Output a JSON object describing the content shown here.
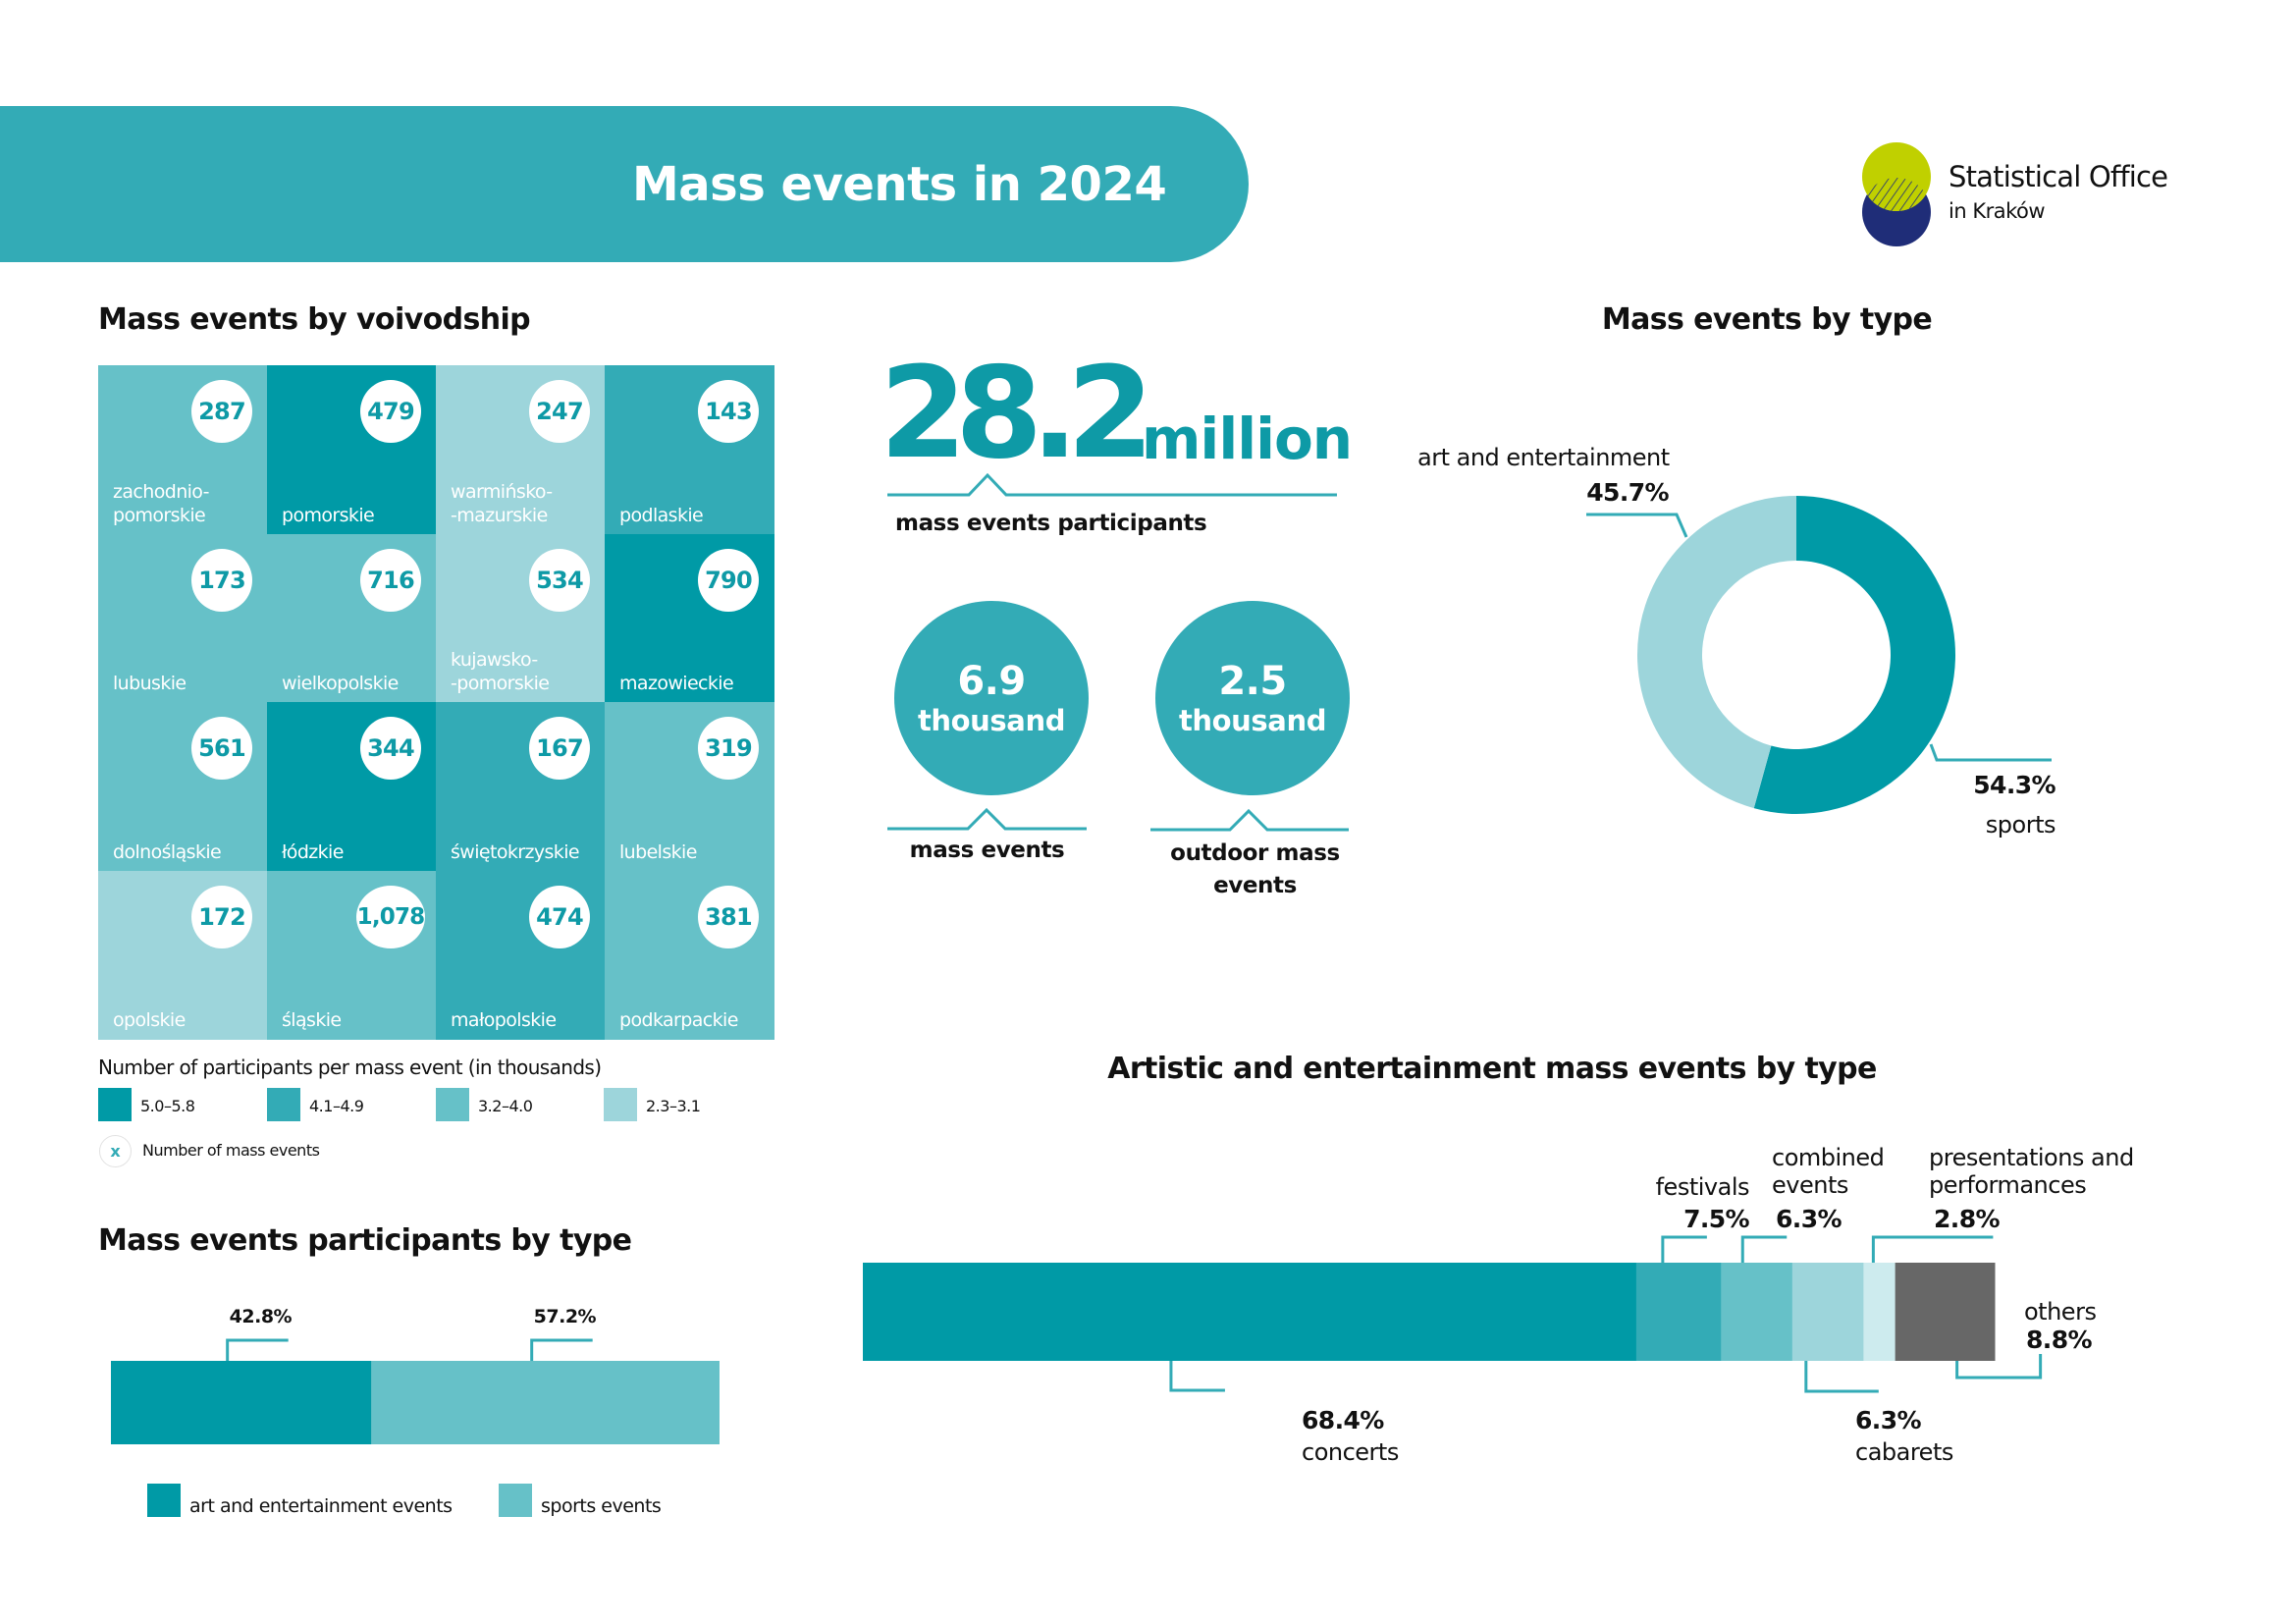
{
  "header": {
    "title": "Mass events in 2024",
    "logo_line1": "Statistical Office",
    "logo_line2": "in Kraków",
    "colors": {
      "band": "#33abb6",
      "logo_lime": "#c0d000",
      "logo_navy": "#1f2d78"
    }
  },
  "voivodship": {
    "title": "Mass events by voivodship",
    "cells": [
      {
        "name": "zachodnio-\npomorskie",
        "events": "287",
        "class": "3.2–4.0"
      },
      {
        "name": "pomorskie",
        "events": "479",
        "class": "5.0–5.8"
      },
      {
        "name": "warmińsko-\n-mazurskie",
        "events": "247",
        "class": "2.3–3.1"
      },
      {
        "name": "podlaskie",
        "events": "143",
        "class": "4.1–4.9"
      },
      {
        "name": "lubuskie",
        "events": "173",
        "class": "3.2–4.0"
      },
      {
        "name": "wielkopolskie",
        "events": "716",
        "class": "3.2–4.0"
      },
      {
        "name": "kujawsko-\n-pomorskie",
        "events": "534",
        "class": "2.3–3.1"
      },
      {
        "name": "mazowieckie",
        "events": "790",
        "class": "5.0–5.8"
      },
      {
        "name": "dolnośląskie",
        "events": "561",
        "class": "3.2–4.0"
      },
      {
        "name": "łódzkie",
        "events": "344",
        "class": "5.0–5.8"
      },
      {
        "name": "świętokrzyskie",
        "events": "167",
        "class": "4.1–4.9"
      },
      {
        "name": "lubelskie",
        "events": "319",
        "class": "3.2–4.0"
      },
      {
        "name": "opolskie",
        "events": "172",
        "class": "2.3–3.1"
      },
      {
        "name": "śląskie",
        "events": "1,078",
        "class": "3.2–4.0"
      },
      {
        "name": "małopolskie",
        "events": "474",
        "class": "4.1–4.9"
      },
      {
        "name": "podkarpackie",
        "events": "381",
        "class": "3.2–4.0"
      }
    ],
    "legend_title": "Number of participants per mass event (in thousands)",
    "legend": [
      {
        "label": "5.0–5.8",
        "color": "#009aa6"
      },
      {
        "label": "4.1–4.9",
        "color": "#33abb6"
      },
      {
        "label": "3.2–4.0",
        "color": "#66c1c8"
      },
      {
        "label": "2.3–3.1",
        "color": "#9dd5db"
      }
    ],
    "marker_symbol": "x",
    "marker_label": "Number of mass events"
  },
  "kpis": {
    "participants_value": "28.2",
    "participants_unit": "million",
    "participants_label": "mass events participants",
    "events_value": "6.9",
    "events_unit": "thousand",
    "events_label": "mass events",
    "outdoor_value": "2.5",
    "outdoor_unit": "thousand",
    "outdoor_label": "outdoor mass events"
  },
  "chart_data": [
    {
      "type": "pie",
      "title": "Mass events by type",
      "variant": "donut",
      "slices": [
        {
          "label": "sports",
          "value": 54.3,
          "display": "54.3%",
          "color": "#009aa6"
        },
        {
          "label": "art and entertainment",
          "value": 45.7,
          "display": "45.7%",
          "color": "#9dd5db"
        }
      ]
    },
    {
      "type": "bar",
      "title": "Mass events participants by type",
      "stacked": true,
      "orientation": "horizontal",
      "categories": [
        "art and entertainment events",
        "sports events"
      ],
      "values": [
        42.8,
        57.2
      ],
      "labels": [
        "42.8%",
        "57.2%"
      ],
      "colors": [
        "#009aa6",
        "#66c1c8"
      ],
      "legend": [
        "art and entertainment events",
        "sports events"
      ],
      "legend_position": "bottom"
    },
    {
      "type": "bar",
      "title": "Artistic and entertainment mass events by type",
      "stacked": true,
      "orientation": "horizontal",
      "categories": [
        "concerts",
        "festivals",
        "combined events",
        "cabarets",
        "presentations and performances",
        "others"
      ],
      "values": [
        68.4,
        7.5,
        6.3,
        6.3,
        2.8,
        8.8
      ],
      "labels": [
        "68.4%",
        "7.5%",
        "6.3%",
        "6.3%",
        "2.8%",
        "8.8%"
      ],
      "colors": [
        "#009aa6",
        "#33abb6",
        "#66c1c8",
        "#9dd5db",
        "#cdebee",
        "#676767"
      ]
    }
  ]
}
